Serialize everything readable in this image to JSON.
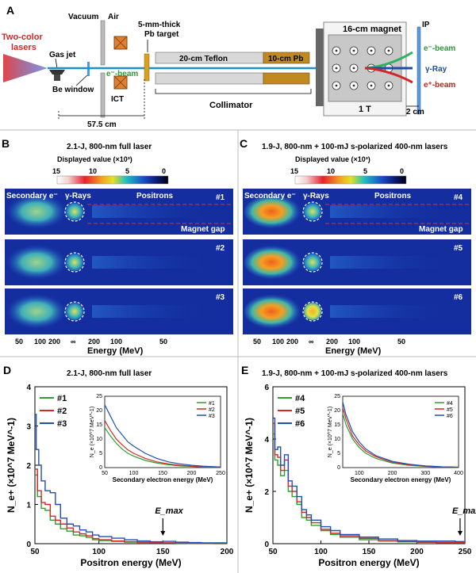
{
  "panelA": {
    "letter": "A",
    "lasers": "Two-color\nlasers",
    "gas_jet": "Gas jet",
    "be_window": "Be window",
    "vacuum": "Vacuum",
    "air": "Air",
    "ebeam": "e⁻-beam",
    "ict": "ICT",
    "target": "5-mm-thick\nPb target",
    "teflon": "20-cm Teflon",
    "pb": "10-cm Pb",
    "collimator": "Collimator",
    "magnet": "16-cm magnet",
    "field": "1 T",
    "ip": "IP",
    "out_e": "e⁻-beam",
    "out_gamma": "γ-Ray",
    "out_pos": "e⁺-beam",
    "dist1": "57.5 cm",
    "dist2": "2 cm"
  },
  "panelB": {
    "letter": "B",
    "title": "2.1-J, 800-nm full laser",
    "cbar_label": "Displayed value (×10³)",
    "cbar_ticks": [
      "15",
      "10",
      "5",
      "0"
    ],
    "label_secondary": "Secondary e⁻",
    "label_gamma": "γ-Rays",
    "label_pos": "Positrons",
    "label_gap": "Magnet gap",
    "shots": [
      "#1",
      "#2",
      "#3"
    ],
    "energy_ticks": [
      "50",
      "100",
      "200",
      "∞",
      "200",
      "100",
      "50"
    ],
    "xlabel": "Energy (MeV)"
  },
  "panelC": {
    "letter": "C",
    "title": "1.9-J, 800-nm + 100-mJ s-polarized 400-nm lasers",
    "cbar_label": "Displayed value (×10³)",
    "cbar_ticks": [
      "15",
      "10",
      "5",
      "0"
    ],
    "label_secondary": "Secondary e⁻",
    "label_gamma": "γ-Rays",
    "label_pos": "Positrons",
    "label_gap": "Magnet gap",
    "shots": [
      "#4",
      "#5",
      "#6"
    ],
    "energy_ticks": [
      "50",
      "100",
      "200",
      "∞",
      "200",
      "100",
      "50"
    ],
    "xlabel": "Energy (MeV)"
  },
  "chart_data": [
    {
      "panel": "D",
      "type": "line",
      "title": "2.1-J, 800-nm full laser",
      "xlabel": "Positron energy (MeV)",
      "ylabel": "N_e+ (×10^7 MeV^-1)",
      "xlim": [
        50,
        200
      ],
      "ylim": [
        0,
        4
      ],
      "xticks": [
        "50",
        "100",
        "150",
        "200"
      ],
      "yticks": [
        "0",
        "1",
        "2",
        "3",
        "4"
      ],
      "annotation": "E_max",
      "emax_x": 150,
      "series": [
        {
          "name": "#1",
          "color": "#2ca02c",
          "x": [
            50,
            52,
            55,
            58,
            62,
            66,
            70,
            75,
            80,
            85,
            90,
            95,
            100,
            110,
            120,
            130,
            140,
            150,
            160,
            170,
            180,
            190,
            200
          ],
          "values": [
            1.75,
            1.2,
            0.9,
            0.85,
            0.6,
            0.5,
            0.38,
            0.32,
            0.22,
            0.2,
            0.16,
            0.1,
            0.08,
            0.06,
            0.04,
            0.03,
            0.02,
            0.02,
            0.01,
            0.01,
            0.01,
            0.0,
            0.0
          ]
        },
        {
          "name": "#2",
          "color": "#d62728",
          "x": [
            50,
            52,
            55,
            58,
            62,
            66,
            70,
            75,
            80,
            85,
            90,
            95,
            100,
            110,
            120,
            130,
            140,
            150,
            160,
            170,
            180,
            190,
            200
          ],
          "values": [
            1.9,
            1.35,
            1.05,
            1.0,
            0.7,
            0.6,
            0.5,
            0.4,
            0.3,
            0.25,
            0.2,
            0.13,
            0.1,
            0.07,
            0.05,
            0.04,
            0.03,
            0.02,
            0.02,
            0.01,
            0.01,
            0.01,
            0.0
          ]
        },
        {
          "name": "#3",
          "color": "#1f4fb4",
          "x": [
            50,
            51,
            53,
            55,
            58,
            62,
            66,
            70,
            75,
            80,
            85,
            90,
            95,
            100,
            110,
            120,
            130,
            140,
            150,
            160,
            170,
            180,
            190,
            200
          ],
          "values": [
            3.3,
            2.4,
            2.0,
            1.6,
            1.35,
            1.3,
            1.0,
            0.65,
            0.5,
            0.45,
            0.35,
            0.3,
            0.22,
            0.18,
            0.14,
            0.1,
            0.07,
            0.05,
            0.06,
            0.04,
            0.03,
            0.02,
            0.02,
            0.01
          ]
        }
      ],
      "inset": {
        "xlabel": "Secondary electron energy (MeV)",
        "ylabel": "N_e (×10^7 MeV^-1)",
        "xlim": [
          50,
          250
        ],
        "ylim": [
          0,
          25
        ],
        "xticks": [
          "50",
          "100",
          "150",
          "200",
          "250"
        ],
        "yticks": [
          "0",
          "5",
          "10",
          "15",
          "20",
          "25"
        ],
        "series": [
          {
            "name": "#1",
            "color": "#2ca02c",
            "x": [
              50,
              60,
              70,
              80,
              90,
              100,
              120,
              140,
              160,
              180,
              200,
              220,
              250
            ],
            "values": [
              14,
              11,
              8.5,
              6.5,
              5,
              4,
              2.5,
              1.6,
              1,
              0.6,
              0.4,
              0.2,
              0.1
            ]
          },
          {
            "name": "#2",
            "color": "#d62728",
            "x": [
              50,
              60,
              70,
              80,
              90,
              100,
              120,
              140,
              160,
              180,
              200,
              220,
              250
            ],
            "values": [
              16.5,
              13,
              10,
              8,
              6.2,
              5,
              3.2,
              2,
              1.3,
              0.8,
              0.5,
              0.3,
              0.1
            ]
          },
          {
            "name": "#3",
            "color": "#1f4fb4",
            "x": [
              50,
              60,
              70,
              80,
              90,
              100,
              120,
              140,
              160,
              180,
              200,
              220,
              250
            ],
            "values": [
              22,
              18,
              14,
              11.5,
              9,
              7.5,
              5,
              3.2,
              2,
              1.3,
              0.8,
              0.5,
              0.2
            ]
          }
        ]
      }
    },
    {
      "panel": "E",
      "type": "line",
      "title": "1.9-J, 800-nm + 100-mJ s-polarized 400-nm lasers",
      "xlabel": "Positron energy (MeV)",
      "ylabel": "N_e+ (×10^7 MeV^-1)",
      "xlim": [
        50,
        250
      ],
      "ylim": [
        0,
        6
      ],
      "xticks": [
        "50",
        "100",
        "150",
        "200",
        "250"
      ],
      "yticks": [
        "0",
        "2",
        "4",
        "6"
      ],
      "annotation": "E_max",
      "emax_x": 245,
      "series": [
        {
          "name": "#4",
          "color": "#2ca02c",
          "x": [
            50,
            52,
            55,
            58,
            62,
            66,
            70,
            75,
            80,
            85,
            90,
            100,
            110,
            120,
            140,
            160,
            180,
            200,
            220,
            240,
            250
          ],
          "values": [
            4.2,
            3.2,
            3.0,
            2.6,
            2.8,
            2.0,
            1.8,
            1.5,
            1.0,
            0.9,
            0.7,
            0.5,
            0.35,
            0.25,
            0.15,
            0.1,
            0.07,
            0.05,
            0.04,
            0.03,
            0.02
          ]
        },
        {
          "name": "#5",
          "color": "#d62728",
          "x": [
            50,
            52,
            55,
            58,
            62,
            66,
            70,
            75,
            80,
            85,
            90,
            100,
            110,
            120,
            140,
            160,
            180,
            200,
            220,
            240,
            250
          ],
          "values": [
            4.6,
            3.4,
            3.3,
            2.8,
            3.2,
            2.2,
            2.0,
            1.6,
            1.2,
            1.0,
            0.8,
            0.55,
            0.4,
            0.3,
            0.2,
            0.12,
            0.08,
            0.06,
            0.05,
            0.04,
            0.02
          ]
        },
        {
          "name": "#6",
          "color": "#1f4fb4",
          "x": [
            50,
            52,
            55,
            58,
            62,
            66,
            70,
            75,
            80,
            85,
            90,
            100,
            110,
            120,
            140,
            160,
            180,
            200,
            220,
            240,
            250
          ],
          "values": [
            4.8,
            3.6,
            3.7,
            3.0,
            3.4,
            2.4,
            2.2,
            1.8,
            1.3,
            1.1,
            0.9,
            0.65,
            0.5,
            0.35,
            0.25,
            0.18,
            0.12,
            0.1,
            0.1,
            0.08,
            0.05
          ]
        }
      ],
      "inset": {
        "xlabel": "Secondary electron energy (MeV)",
        "ylabel": "N_e (×10^7 MeV^-1)",
        "xlim": [
          50,
          400
        ],
        "ylim": [
          0,
          25
        ],
        "xticks": [
          "100",
          "200",
          "300",
          "400"
        ],
        "yticks": [
          "0",
          "5",
          "10",
          "15",
          "20",
          "25"
        ],
        "series": [
          {
            "name": "#4",
            "color": "#2ca02c",
            "x": [
              50,
              60,
              80,
              100,
              120,
              150,
              200,
              250,
              300,
              350,
              400
            ],
            "values": [
              19,
              15,
              10,
              7,
              5,
              3.2,
              1.6,
              0.8,
              0.4,
              0.2,
              0.1
            ]
          },
          {
            "name": "#5",
            "color": "#d62728",
            "x": [
              50,
              60,
              80,
              100,
              120,
              150,
              200,
              250,
              300,
              350,
              400
            ],
            "values": [
              21,
              17,
              11,
              8,
              5.8,
              3.8,
              1.9,
              1.0,
              0.5,
              0.25,
              0.1
            ]
          },
          {
            "name": "#6",
            "color": "#1f4fb4",
            "x": [
              50,
              60,
              80,
              100,
              120,
              150,
              200,
              250,
              300,
              350,
              400
            ],
            "values": [
              23,
              18.5,
              12.5,
              9,
              6.5,
              4.2,
              2.2,
              1.2,
              0.6,
              0.3,
              0.15
            ]
          }
        ]
      }
    }
  ]
}
